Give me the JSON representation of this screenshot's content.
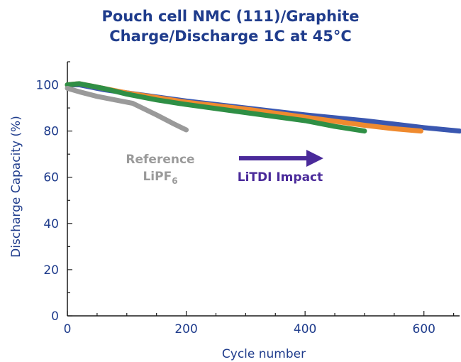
{
  "chart_data": {
    "type": "line",
    "title_line1": "Pouch cell NMC (111)/Graphite",
    "title_line2": "Charge/Discharge 1C at 45°C",
    "xlabel": "Cycle number",
    "ylabel": "Discharge Capacity (%)",
    "xlim": [
      0,
      660
    ],
    "ylim": [
      0,
      110
    ],
    "x_ticks": [
      0,
      200,
      400,
      600
    ],
    "y_ticks": [
      0,
      20,
      40,
      60,
      80,
      100
    ],
    "grid": false,
    "series": [
      {
        "color": "#3a57b0",
        "x": [
          0,
          20,
          60,
          100,
          200,
          300,
          400,
          500,
          550,
          600,
          660
        ],
        "y": [
          100,
          100,
          98,
          96.5,
          93,
          90,
          87,
          84.5,
          83,
          81.5,
          80
        ]
      },
      {
        "color": "#ef8a2f",
        "x": [
          0,
          20,
          60,
          100,
          200,
          300,
          400,
          500,
          550,
          595
        ],
        "y": [
          100,
          100.5,
          98.5,
          96.5,
          92.5,
          89.5,
          86,
          82.5,
          81,
          80
        ]
      },
      {
        "color": "#2f8f45",
        "x": [
          0,
          20,
          60,
          100,
          150,
          200,
          300,
          400,
          450,
          500
        ],
        "y": [
          100,
          100.5,
          98.5,
          96,
          93.5,
          91.5,
          88,
          84.5,
          82,
          80
        ]
      },
      {
        "color": "#9a9a9a",
        "x": [
          0,
          20,
          50,
          80,
          110,
          150,
          180,
          200
        ],
        "y": [
          98.5,
          97,
          95,
          93.5,
          92,
          87,
          83,
          80.5
        ]
      }
    ],
    "annotations": {
      "reference_line1": "Reference",
      "reference_line2": "LiPF",
      "reference_subscript": "6",
      "litdi": "LiTDI Impact",
      "arrow_color": "#4a2a9a"
    }
  }
}
